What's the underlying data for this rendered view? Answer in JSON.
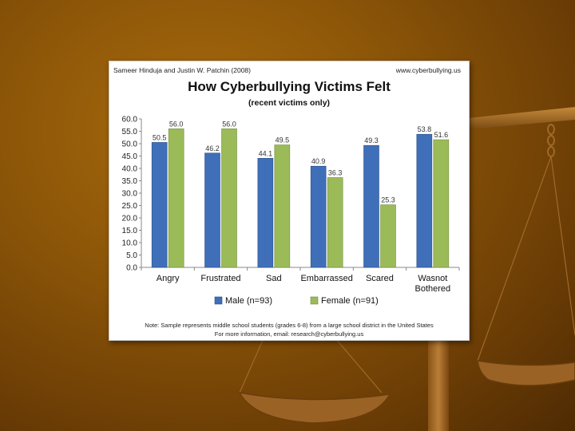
{
  "header": {
    "author": "Sameer Hinduja and Justin W. Patchin (2008)",
    "website": "www.cyberbullying.us"
  },
  "footnote": {
    "line1": "Note: Sample represents middle school students (grades 6-8) from a large school district in the United States",
    "line2": "For more information, email: research@cyberbullying.us"
  },
  "colors": {
    "background": "#8a5408",
    "male": "#3f6fb8",
    "female": "#9bbb59"
  },
  "chart_data": {
    "type": "bar",
    "title": "How Cyberbullying Victims Felt",
    "subtitle": "(recent victims only)",
    "categories": [
      "Angry",
      "Frustrated",
      "Sad",
      "Embarrassed",
      "Scared",
      "Wasnot Bothered"
    ],
    "series": [
      {
        "name": "Male (n=93)",
        "values": [
          50.5,
          46.2,
          44.1,
          40.9,
          49.3,
          53.8
        ],
        "labels": [
          "50.5",
          "46.2",
          "44.1",
          "40.9",
          "49.3",
          "53.8"
        ]
      },
      {
        "name": "Female (n=91)",
        "values": [
          56.0,
          56.0,
          49.5,
          36.3,
          25.3,
          51.6
        ],
        "labels": [
          "56.0",
          "56.0",
          "49.5",
          "36.3",
          "25.3",
          "51.6"
        ]
      }
    ],
    "ylim": [
      0,
      60
    ],
    "yticks": [
      "0.0",
      "5.0",
      "10.0",
      "15.0",
      "20.0",
      "25.0",
      "30.0",
      "35.0",
      "40.0",
      "45.0",
      "50.0",
      "55.0",
      "60.0"
    ],
    "xlabel": "",
    "ylabel": "",
    "grid": false,
    "legend": "bottom"
  }
}
